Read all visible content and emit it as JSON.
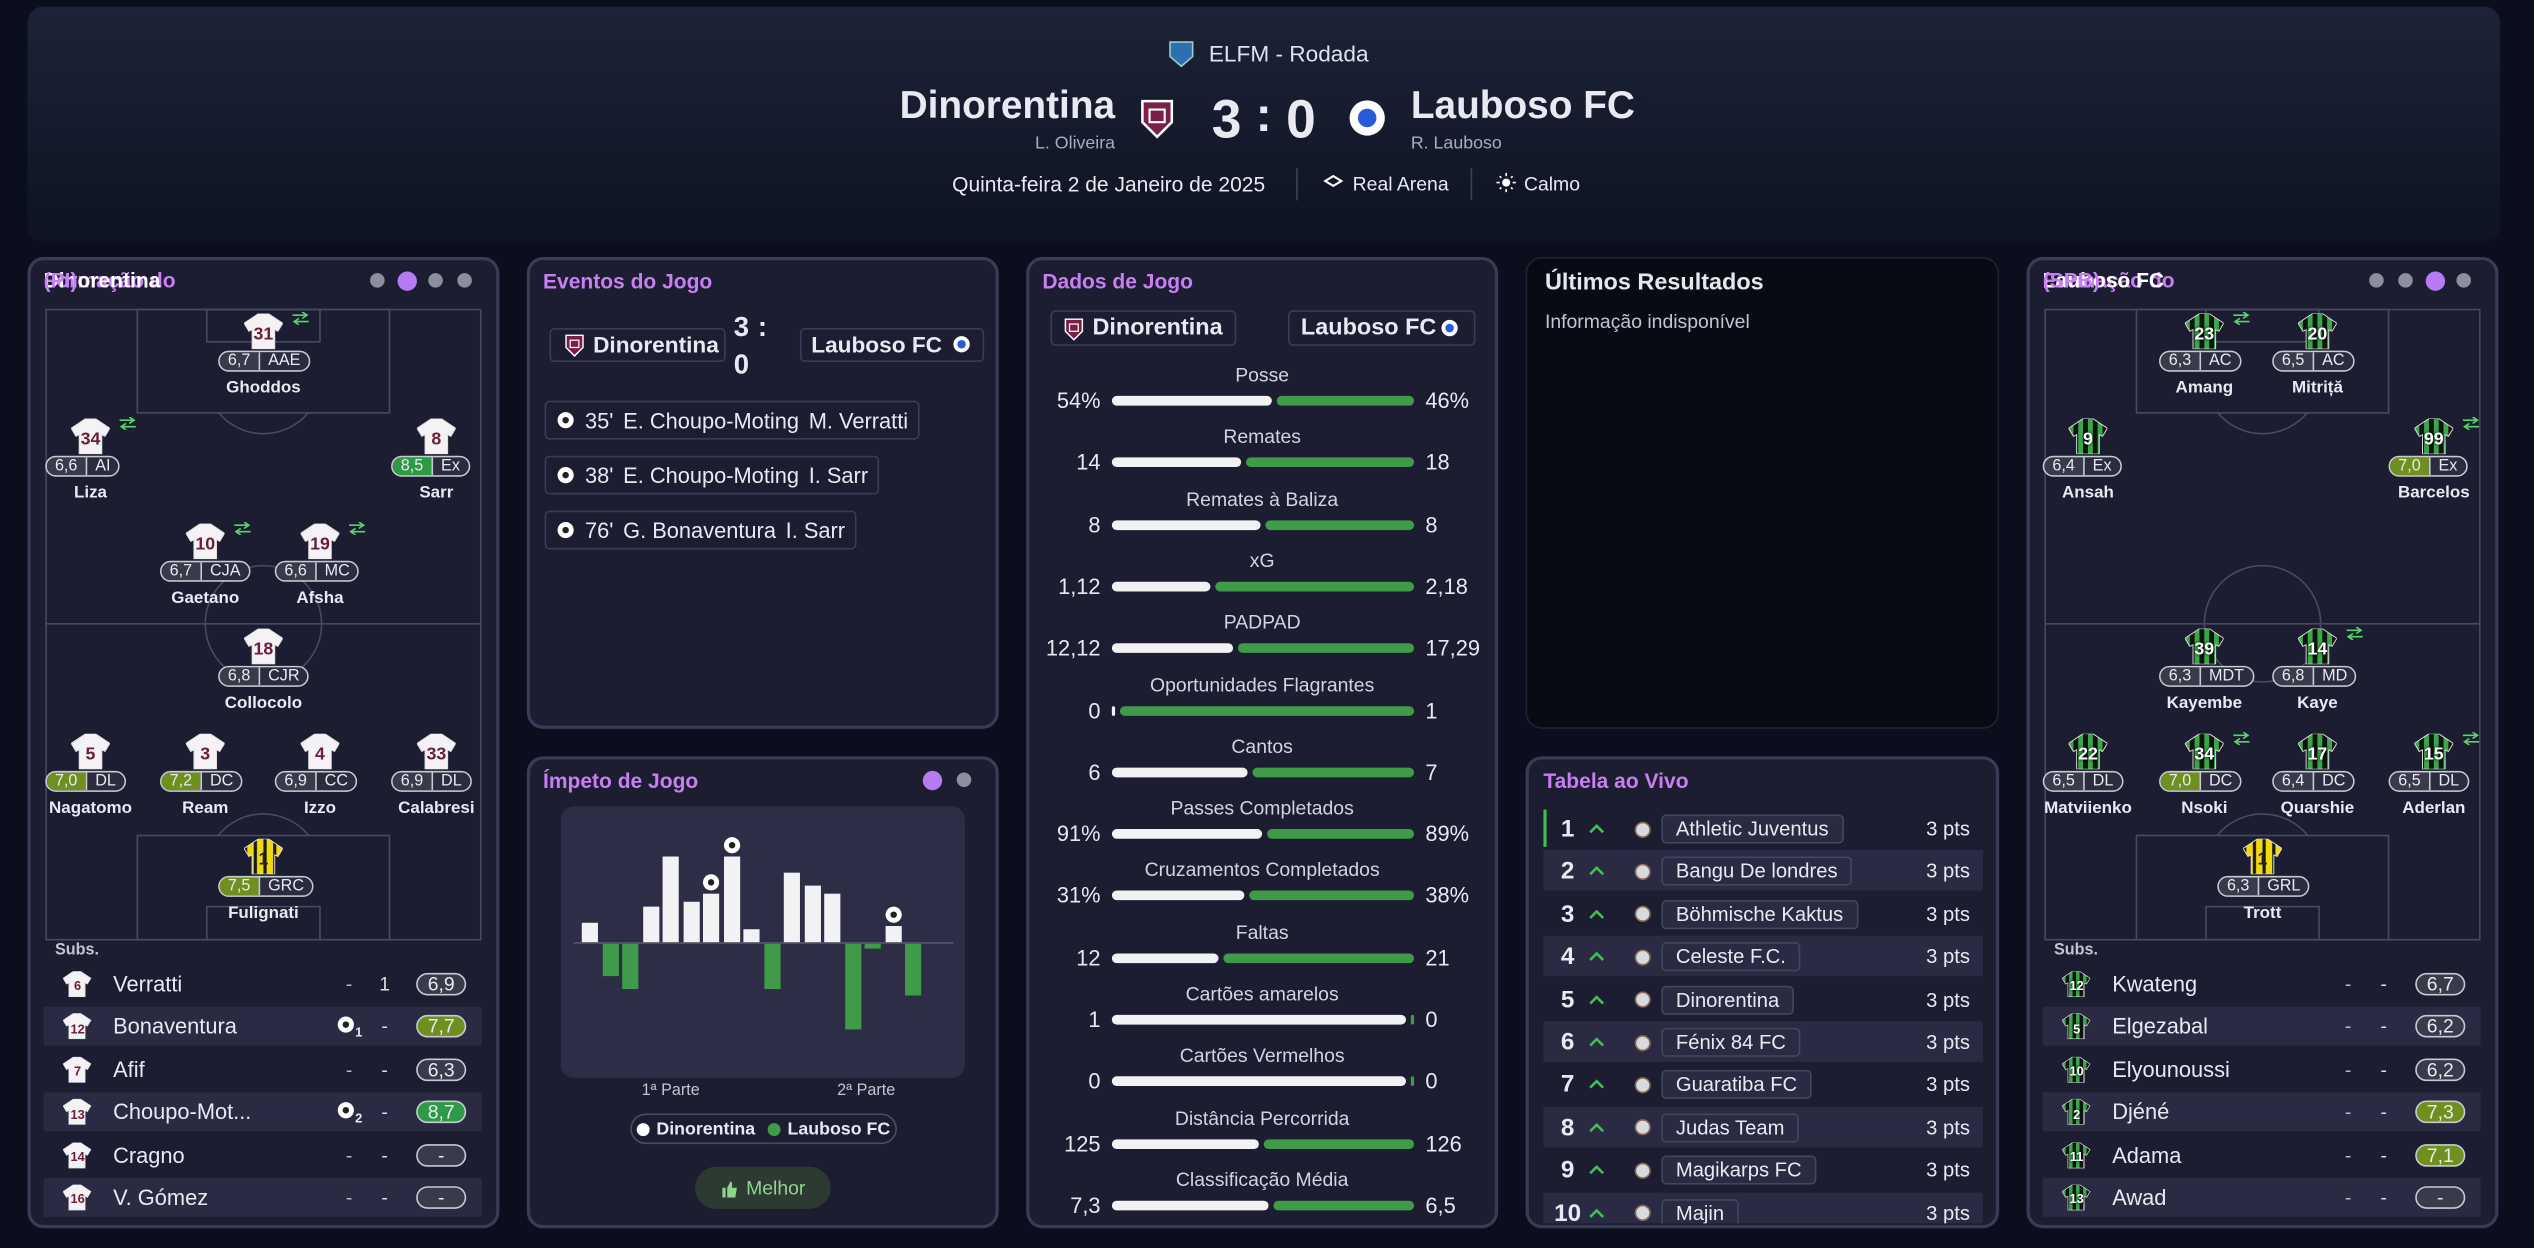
{
  "header": {
    "competition": "ELFM - Rodada",
    "home": {
      "name": "Dinorentina",
      "manager": "L. Oliveira",
      "score": 3
    },
    "away": {
      "name": "Lauboso FC",
      "manager": "R. Lauboso",
      "score": 0
    },
    "separator": ":",
    "date": "Quinta-feira 2 de Janeiro de 2025",
    "venue": "Real Arena",
    "weather": "Calmo"
  },
  "lineups": [
    {
      "title_prefix": "Formação do",
      "team": "Dinorentina",
      "formation": "(PI)",
      "subs_label": "Subs.",
      "players": [
        {
          "number": 31,
          "rating": "6,7",
          "position": "AAE",
          "name": "Ghoddos"
        },
        {
          "number": 34,
          "rating": "6,6",
          "position": "AI",
          "name": "Liza"
        },
        {
          "number": 8,
          "rating": "8,5",
          "position": "Ex",
          "name": "Sarr"
        },
        {
          "number": 10,
          "rating": "6,7",
          "position": "CJA",
          "name": "Gaetano"
        },
        {
          "number": 19,
          "rating": "6,6",
          "position": "MC",
          "name": "Afsha"
        },
        {
          "number": 18,
          "rating": "6,8",
          "position": "CJR",
          "name": "Collocolo"
        },
        {
          "number": 5,
          "rating": "7,0",
          "position": "DL",
          "name": "Nagatomo"
        },
        {
          "number": 3,
          "rating": "7,2",
          "position": "DC",
          "name": "Ream"
        },
        {
          "number": 4,
          "rating": "6,9",
          "position": "CC",
          "name": "Izzo"
        },
        {
          "number": 33,
          "rating": "6,9",
          "position": "DL",
          "name": "Calabresi"
        },
        {
          "number": 1,
          "rating": "7,5",
          "position": "GRC",
          "name": "Fulignati"
        }
      ],
      "subs": [
        {
          "number": 6,
          "name": "Verratti",
          "goals": "-",
          "assists": "1",
          "rating": "6,9"
        },
        {
          "number": 12,
          "name": "Bonaventura",
          "goals": 1,
          "assists": "-",
          "rating": "7,7"
        },
        {
          "number": 7,
          "name": "Afif",
          "goals": "-",
          "assists": "-",
          "rating": "6,3"
        },
        {
          "number": 13,
          "name": "Choupo-Mot...",
          "goals": 2,
          "assists": "-",
          "rating": "8,7"
        },
        {
          "number": 14,
          "name": "Cragno",
          "goals": "-",
          "assists": "-",
          "rating": "-"
        },
        {
          "number": 16,
          "name": "V. Gómez",
          "goals": "-",
          "assists": "-",
          "rating": "-"
        }
      ]
    },
    {
      "title_prefix": "Formação do",
      "team": "Lauboso FC",
      "formation": "(SPB)",
      "subs_label": "Subs.",
      "players": [
        {
          "number": 23,
          "rating": "6,3",
          "position": "AC",
          "name": "Amang"
        },
        {
          "number": 20,
          "rating": "6,5",
          "position": "AC",
          "name": "Mitriță"
        },
        {
          "number": 9,
          "rating": "6,4",
          "position": "Ex",
          "name": "Ansah"
        },
        {
          "number": 99,
          "rating": "7,0",
          "position": "Ex",
          "name": "Barcelos"
        },
        {
          "number": 39,
          "rating": "6,3",
          "position": "MDT",
          "name": "Kayembe"
        },
        {
          "number": 14,
          "rating": "6,8",
          "position": "MD",
          "name": "Kaye"
        },
        {
          "number": 22,
          "rating": "6,5",
          "position": "DL",
          "name": "Matviienko"
        },
        {
          "number": 34,
          "rating": "7,0",
          "position": "DC",
          "name": "Nsoki"
        },
        {
          "number": 17,
          "rating": "6,4",
          "position": "DC",
          "name": "Quarshie"
        },
        {
          "number": 15,
          "rating": "6,5",
          "position": "DL",
          "name": "Aderlan"
        },
        {
          "number": 1,
          "rating": "6,3",
          "position": "GRL",
          "name": "Trott"
        }
      ],
      "subs": [
        {
          "number": 12,
          "name": "Kwateng",
          "goals": "-",
          "assists": "-",
          "rating": "6,7"
        },
        {
          "number": 5,
          "name": "Elgezabal",
          "goals": "-",
          "assists": "-",
          "rating": "6,2"
        },
        {
          "number": 10,
          "name": "Elyounoussi",
          "goals": "-",
          "assists": "-",
          "rating": "6,2"
        },
        {
          "number": 2,
          "name": "Djéné",
          "goals": "-",
          "assists": "-",
          "rating": "7,3"
        },
        {
          "number": 11,
          "name": "Adama",
          "goals": "-",
          "assists": "-",
          "rating": "7,1"
        },
        {
          "number": 13,
          "name": "Awad",
          "goals": "-",
          "assists": "-",
          "rating": "-"
        }
      ]
    }
  ],
  "events": {
    "title": "Eventos do Jogo",
    "items": [
      {
        "minute": "35'",
        "scorer": "E. Choupo-Moting",
        "assist": "M. Verratti"
      },
      {
        "minute": "38'",
        "scorer": "E. Choupo-Moting",
        "assist": "I. Sarr"
      },
      {
        "minute": "76'",
        "scorer": "G. Bonaventura",
        "assist": "I. Sarr"
      }
    ]
  },
  "momentum": {
    "title": "Ímpeto de Jogo",
    "values": [
      12,
      -20,
      -28,
      22,
      53,
      25,
      30,
      53,
      8,
      -28,
      43,
      35,
      30,
      -53,
      -3,
      10,
      -32
    ],
    "halves": [
      "1ª Parte",
      "2ª Parte"
    ],
    "button": "Melhor"
  },
  "stats": {
    "title": "Dados de Jogo",
    "rows": [
      {
        "name": "Posse",
        "home": 54,
        "away": 46,
        "home_label": "54%",
        "away_label": "46%"
      },
      {
        "name": "Remates",
        "home": 14,
        "away": 18
      },
      {
        "name": "Remates à Baliza",
        "home": 8,
        "away": 8
      },
      {
        "name": "xG",
        "home": 1.12,
        "away": 2.18,
        "home_label": "1,12",
        "away_label": "2,18"
      },
      {
        "name": "PADPAD",
        "home": 12.12,
        "away": 17.29,
        "home_label": "12,12",
        "away_label": "17,29"
      },
      {
        "name": "Oportunidades Flagrantes",
        "home": 0,
        "away": 1
      },
      {
        "name": "Cantos",
        "home": 6,
        "away": 7
      },
      {
        "name": "Passes Completados",
        "home": 91,
        "away": 89,
        "home_label": "91%",
        "away_label": "89%"
      },
      {
        "name": "Cruzamentos Completados",
        "home": 31,
        "away": 38,
        "home_label": "31%",
        "away_label": "38%"
      },
      {
        "name": "Faltas",
        "home": 12,
        "away": 21
      },
      {
        "name": "Cartões amarelos",
        "home": 1,
        "away": 0
      },
      {
        "name": "Cartões Vermelhos",
        "home": 0,
        "away": 0
      },
      {
        "name": "Distância Percorrida",
        "home": 125,
        "away": 126
      },
      {
        "name": "Classificação Média",
        "home": 7.3,
        "away": 6.5,
        "home_label": "7,3",
        "away_label": "6,5"
      }
    ]
  },
  "results": {
    "title": "Últimos Resultados",
    "message": "Informação indisponível"
  },
  "table": {
    "title": "Tabela ao Vivo",
    "rows": [
      {
        "position": 1,
        "team": "Athletic Juventus",
        "points": "3 pts"
      },
      {
        "position": 2,
        "team": "Bangu De londres",
        "points": "3 pts"
      },
      {
        "position": 3,
        "team": "Böhmische Kaktus",
        "points": "3 pts"
      },
      {
        "position": 4,
        "team": "Celeste F.C.",
        "points": "3 pts"
      },
      {
        "position": 5,
        "team": "Dinorentina",
        "points": "3 pts"
      },
      {
        "position": 6,
        "team": "Fénix 84 FC",
        "points": "3 pts"
      },
      {
        "position": 7,
        "team": "Guaratiba FC",
        "points": "3 pts"
      },
      {
        "position": 8,
        "team": "Judas Team",
        "points": "3 pts"
      },
      {
        "position": 9,
        "team": "Magikarps FC",
        "points": "3 pts"
      },
      {
        "position": 10,
        "team": "Majin",
        "points": "3 pts"
      }
    ]
  }
}
